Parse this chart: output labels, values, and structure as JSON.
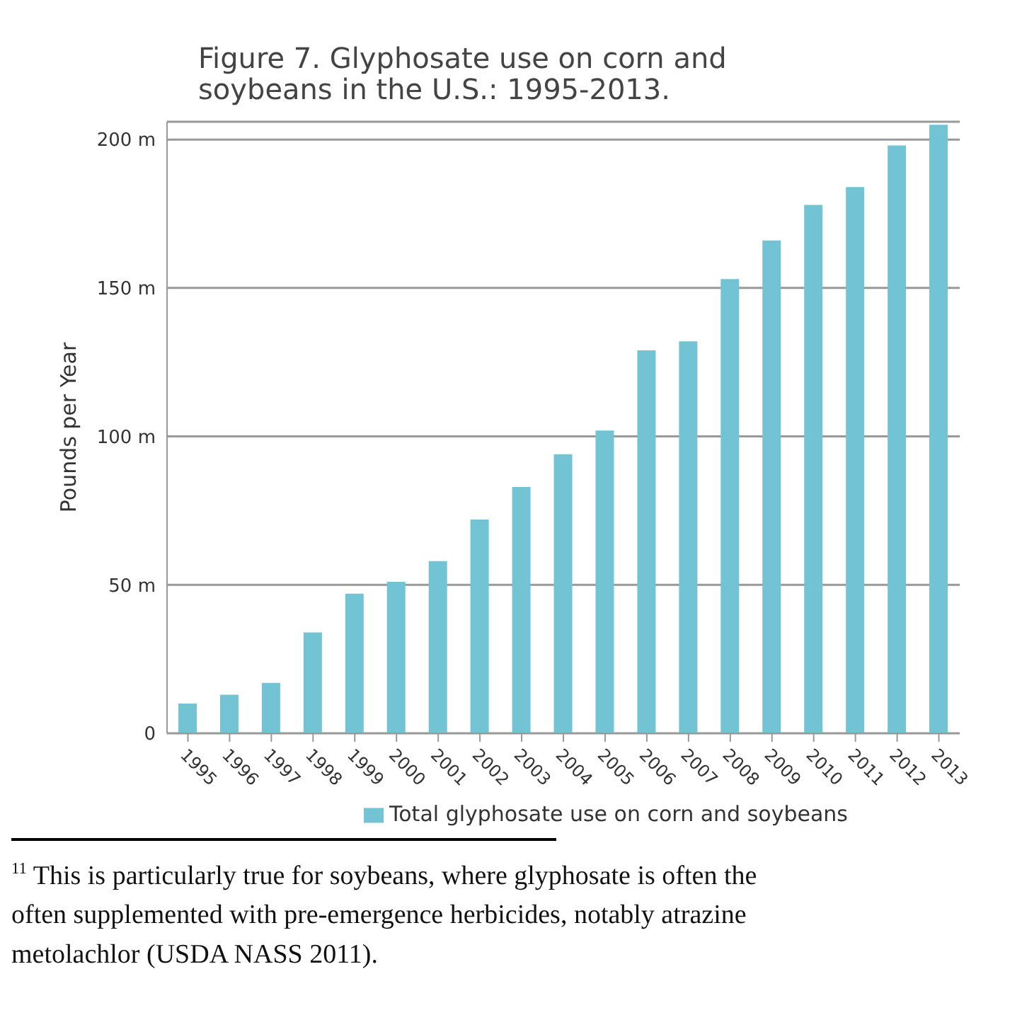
{
  "chart_data": {
    "type": "bar",
    "title": "Figure 7. Glyphosate use on corn and soybeans in the U.S.: 1995-2013.",
    "ylabel": "Pounds per Year",
    "categories": [
      "1995",
      "1996",
      "1997",
      "1998",
      "1999",
      "2000",
      "2001",
      "2002",
      "2003",
      "2004",
      "2005",
      "2006",
      "2007",
      "2008",
      "2009",
      "2010",
      "2011",
      "2012",
      "2013"
    ],
    "series": [
      {
        "name": "Total glyphosate use on corn and soybeans",
        "color": "#72c4d4",
        "values": [
          10,
          13,
          17,
          34,
          47,
          51,
          58,
          72,
          83,
          94,
          102,
          129,
          132,
          153,
          166,
          178,
          184,
          198,
          205
        ]
      }
    ],
    "ylim": [
      0,
      206
    ],
    "yticks": [
      {
        "value": 0,
        "label": "0"
      },
      {
        "value": 50,
        "label": "50 m"
      },
      {
        "value": 100,
        "label": "100 m"
      },
      {
        "value": 150,
        "label": "150 m"
      },
      {
        "value": 200,
        "label": "200 m"
      }
    ],
    "grid": "y",
    "legend": "bottom",
    "annotations": [
      "$^{11}$ This is particularly true for soybeans, where glyphosate is often the",
      "often supplemented with pre-emergence herbicides, notably atrazine",
      "metolachlor (USDA NASS 2011)."
    ]
  }
}
